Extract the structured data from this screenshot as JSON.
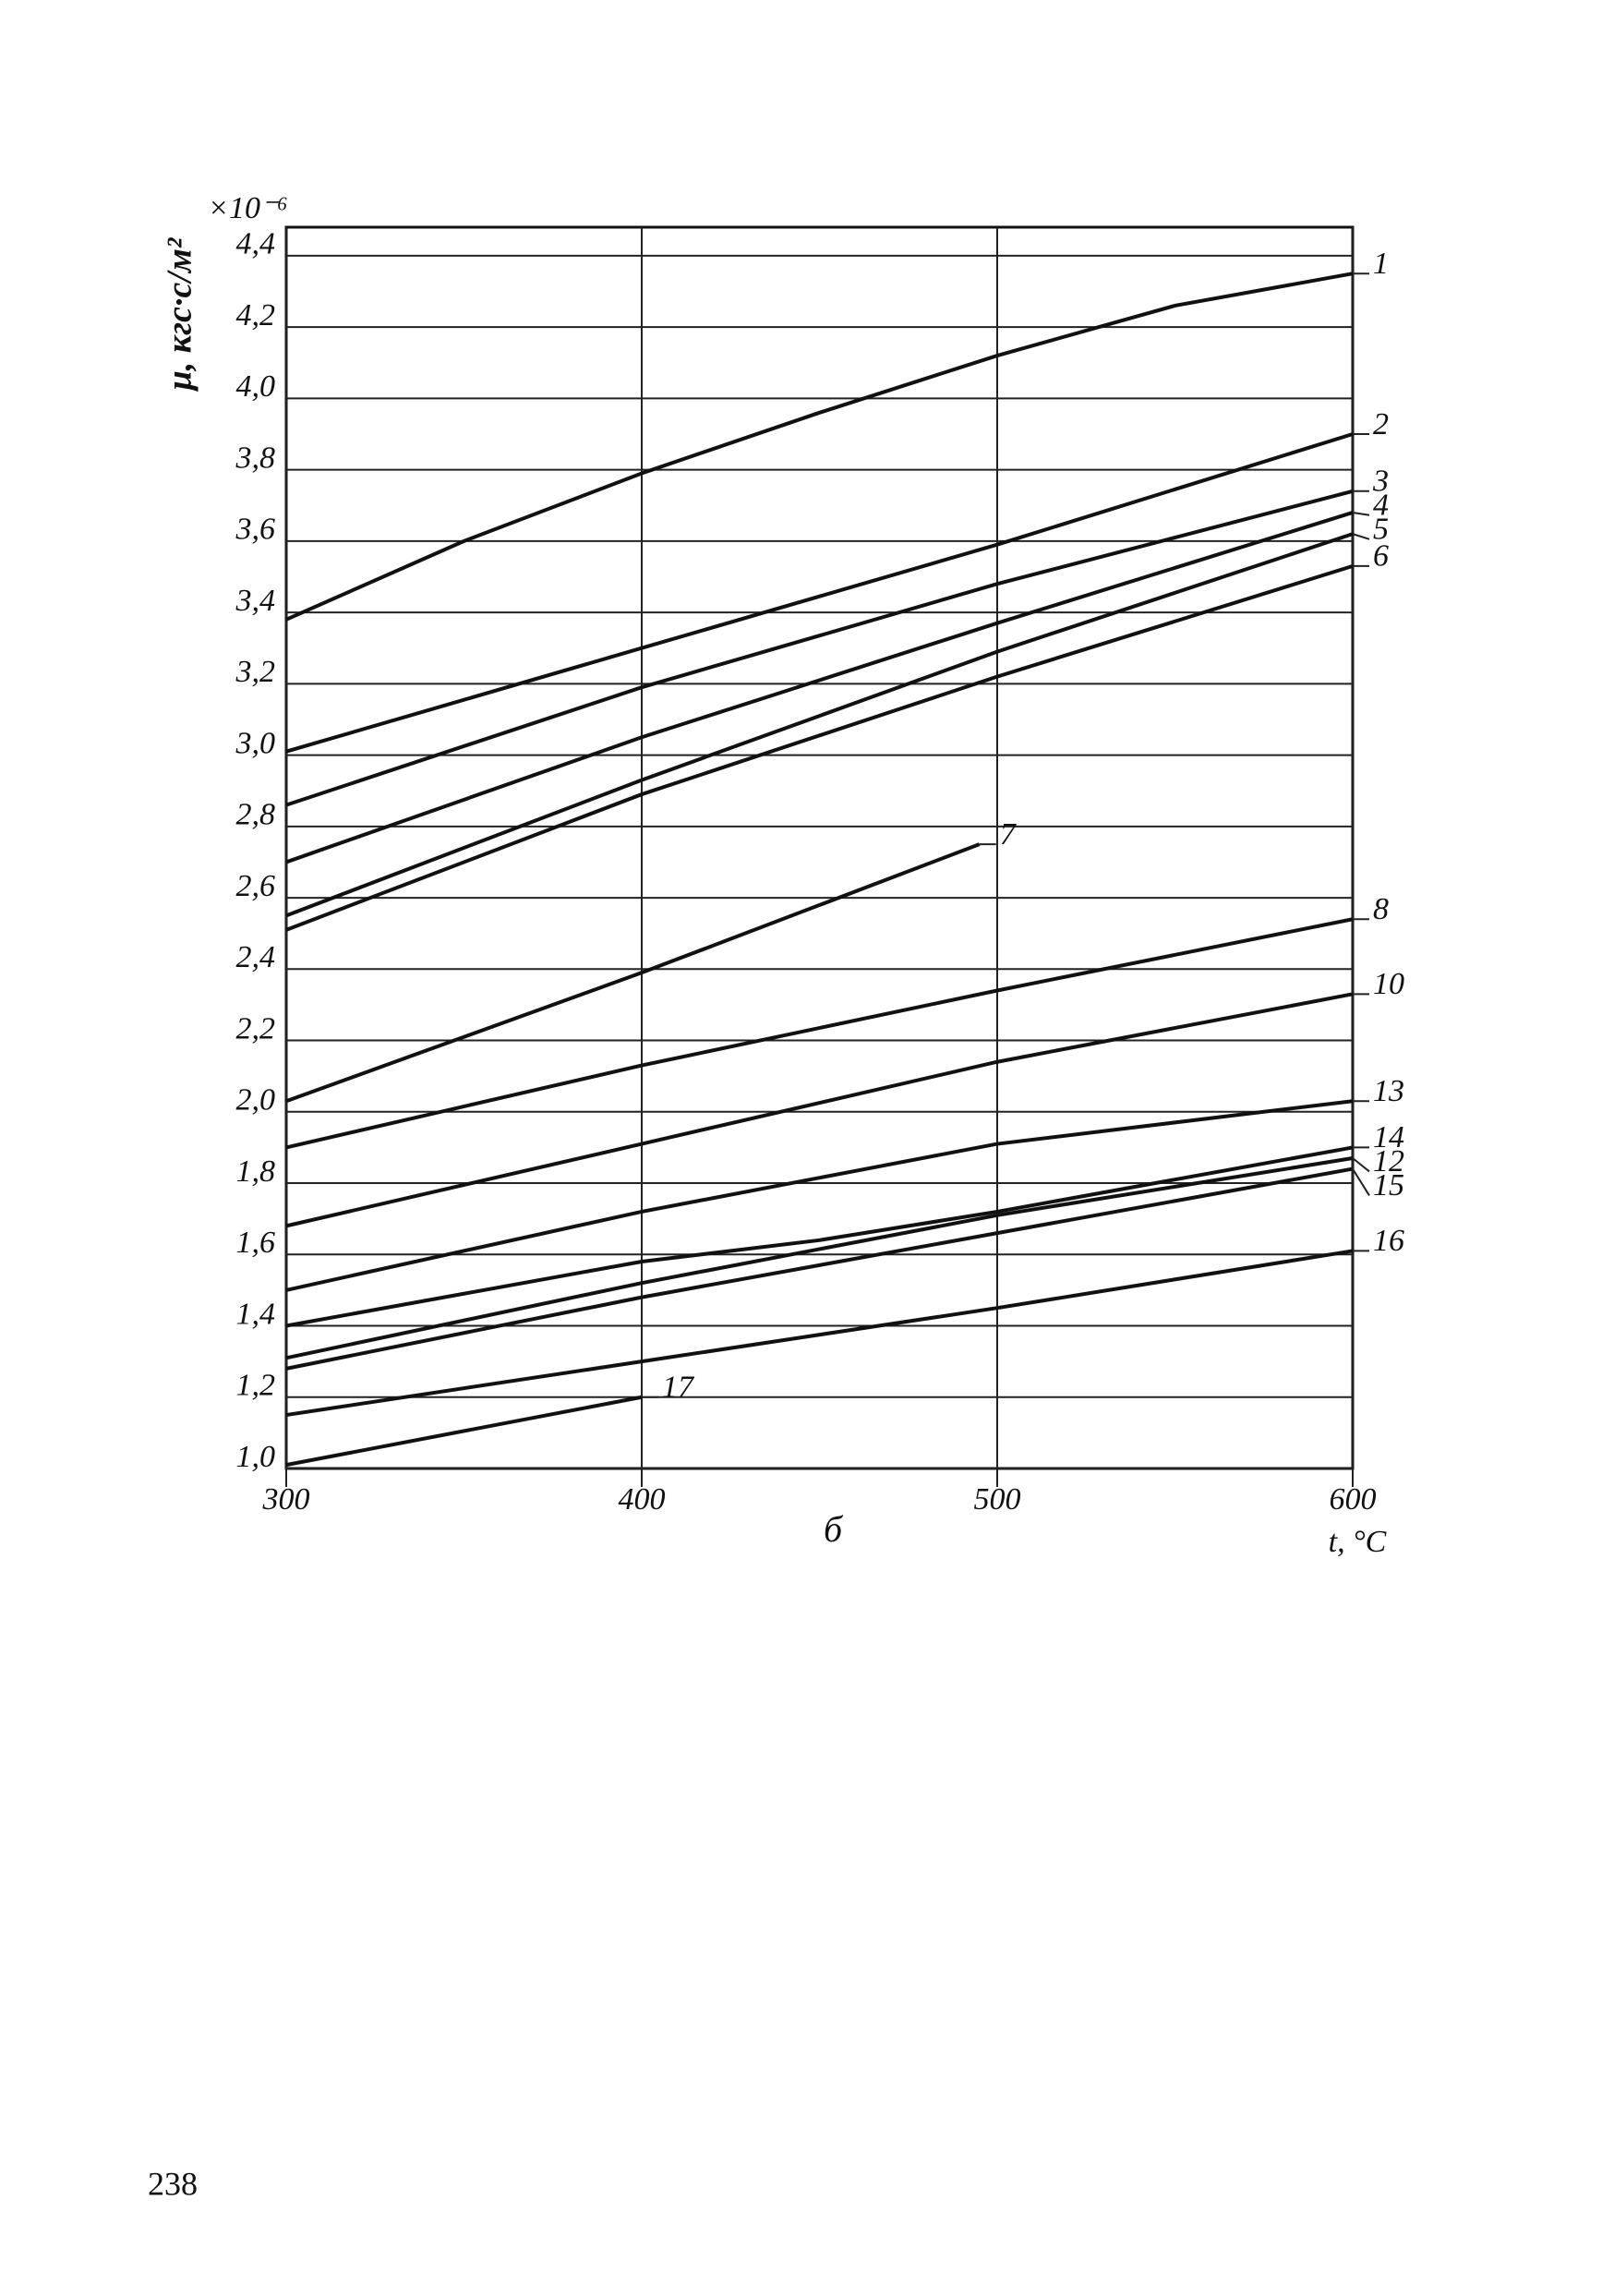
{
  "page_number": "238",
  "chart_data": {
    "type": "line",
    "y_label": "μ, кгс·с/м²",
    "y_multiplier": "×10⁻⁶",
    "x_label": "t, °C",
    "panel_label": "б",
    "xlim": [
      300,
      600
    ],
    "ylim": [
      1.0,
      4.48
    ],
    "xticks": [
      300,
      400,
      500,
      600
    ],
    "yticks": [
      {
        "value": 1.0,
        "label": "1,0"
      },
      {
        "value": 1.2,
        "label": "1,2"
      },
      {
        "value": 1.4,
        "label": "1,4"
      },
      {
        "value": 1.6,
        "label": "1,6"
      },
      {
        "value": 1.8,
        "label": "1,8"
      },
      {
        "value": 2.0,
        "label": "2,0"
      },
      {
        "value": 2.2,
        "label": "2,2"
      },
      {
        "value": 2.4,
        "label": "2,4"
      },
      {
        "value": 2.6,
        "label": "2,6"
      },
      {
        "value": 2.8,
        "label": "2,8"
      },
      {
        "value": 3.0,
        "label": "3,0"
      },
      {
        "value": 3.2,
        "label": "3,2"
      },
      {
        "value": 3.4,
        "label": "3,4"
      },
      {
        "value": 3.6,
        "label": "3,6"
      },
      {
        "value": 3.8,
        "label": "3,8"
      },
      {
        "value": 4.0,
        "label": "4,0"
      },
      {
        "value": 4.2,
        "label": "4,2"
      },
      {
        "value": 4.4,
        "label": "4,4"
      }
    ],
    "grid": true,
    "color": "#111111",
    "series": [
      {
        "name": "1",
        "x": [
          300,
          350,
          400,
          450,
          500,
          550,
          600
        ],
        "values": [
          3.38,
          3.6,
          3.79,
          3.96,
          4.12,
          4.26,
          4.35
        ]
      },
      {
        "name": "2",
        "x": [
          300,
          400,
          500,
          600
        ],
        "values": [
          3.01,
          3.3,
          3.59,
          3.9
        ]
      },
      {
        "name": "3",
        "x": [
          300,
          400,
          500,
          600
        ],
        "values": [
          2.86,
          3.19,
          3.48,
          3.74
        ]
      },
      {
        "name": "4",
        "x": [
          300,
          400,
          500,
          600
        ],
        "values": [
          2.7,
          3.05,
          3.37,
          3.68
        ]
      },
      {
        "name": "5",
        "x": [
          300,
          400,
          500,
          600
        ],
        "values": [
          2.55,
          2.93,
          3.29,
          3.62
        ]
      },
      {
        "name": "6",
        "x": [
          300,
          400,
          500,
          600
        ],
        "values": [
          2.51,
          2.89,
          3.22,
          3.53
        ]
      },
      {
        "name": "7",
        "x": [
          300,
          400,
          495
        ],
        "values": [
          2.03,
          2.39,
          2.75
        ]
      },
      {
        "name": "8",
        "x": [
          300,
          400,
          500,
          600
        ],
        "values": [
          1.9,
          2.13,
          2.34,
          2.54
        ]
      },
      {
        "name": "10",
        "x": [
          300,
          400,
          500,
          600
        ],
        "values": [
          1.68,
          1.91,
          2.14,
          2.33
        ]
      },
      {
        "name": "13",
        "x": [
          300,
          400,
          500,
          600
        ],
        "values": [
          1.5,
          1.72,
          1.91,
          2.03
        ]
      },
      {
        "name": "14",
        "x": [
          300,
          400,
          450,
          500,
          600
        ],
        "values": [
          1.4,
          1.58,
          1.64,
          1.72,
          1.9
        ]
      },
      {
        "name": "12",
        "x": [
          300,
          400,
          500,
          600
        ],
        "values": [
          1.31,
          1.52,
          1.71,
          1.87
        ]
      },
      {
        "name": "15",
        "x": [
          300,
          400,
          500,
          600
        ],
        "values": [
          1.28,
          1.48,
          1.66,
          1.84
        ]
      },
      {
        "name": "16",
        "x": [
          300,
          400,
          500,
          600
        ],
        "values": [
          1.15,
          1.3,
          1.45,
          1.61
        ]
      },
      {
        "name": "17",
        "x": [
          300,
          400
        ],
        "values": [
          1.01,
          1.2
        ]
      }
    ]
  }
}
